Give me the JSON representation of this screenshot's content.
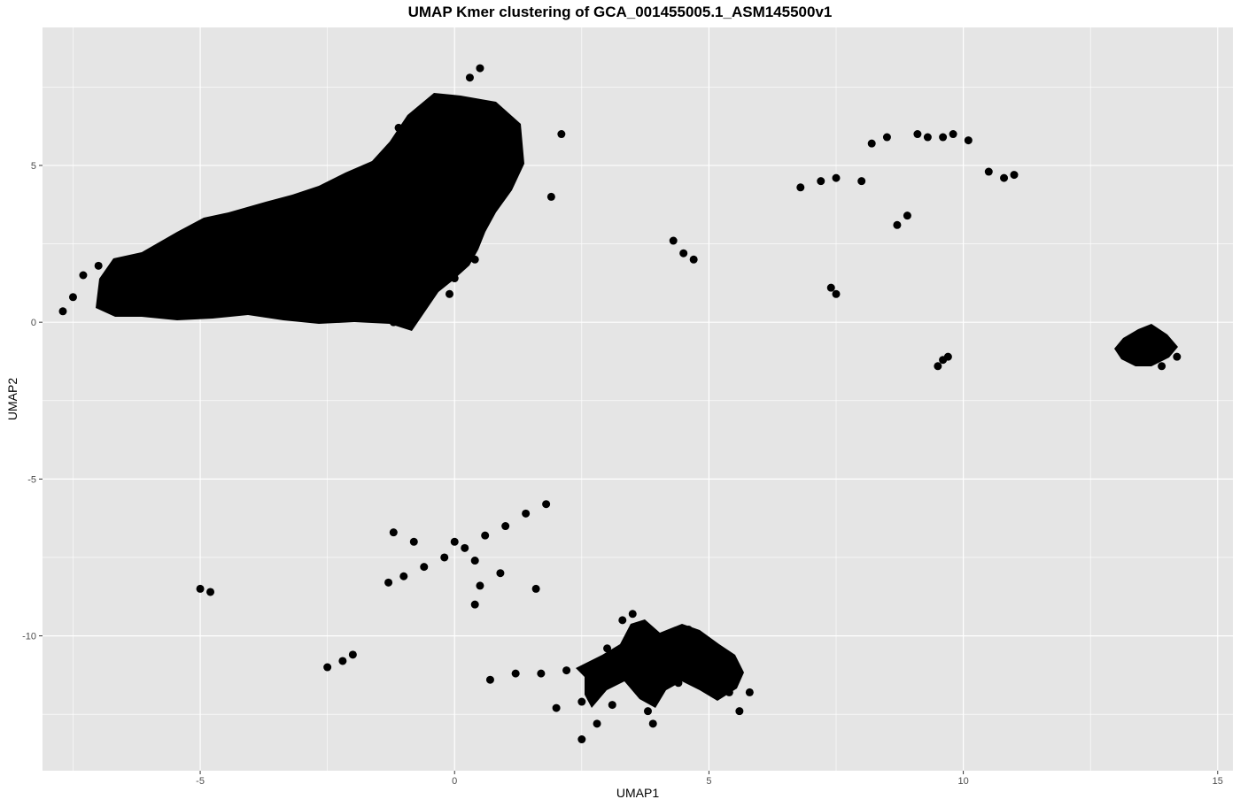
{
  "chart_data": {
    "type": "scatter",
    "title": "UMAP Kmer clustering of GCA_001455005.1_ASM145500v1",
    "xlabel": "UMAP1",
    "ylabel": "UMAP2",
    "xlim": [
      -8.1,
      15.3
    ],
    "ylim": [
      -14.3,
      9.4
    ],
    "x_ticks": [
      -5,
      0,
      5,
      10,
      15
    ],
    "x_tick_labels": [
      "-5",
      "0",
      "5",
      "10",
      "15"
    ],
    "y_ticks": [
      -10,
      -5,
      0,
      5
    ],
    "y_tick_labels": [
      "-10",
      "-5",
      "0",
      "5"
    ],
    "grid": true,
    "legend": "none",
    "point_color": "#000000",
    "panel_background": "#e5e5e5",
    "grid_color": "#ffffff",
    "series": [
      {
        "points": [
          [
            -7.7,
            0.35
          ],
          [
            -7.5,
            0.8
          ],
          [
            -7.3,
            1.5
          ],
          [
            -7.0,
            1.8
          ],
          [
            -6.8,
            0.6
          ],
          [
            -6.5,
            1.2
          ],
          [
            -6.2,
            2.0
          ],
          [
            -6.0,
            0.4
          ],
          [
            -5.8,
            1.6
          ],
          [
            -5.6,
            2.4
          ],
          [
            -5.4,
            0.9
          ],
          [
            -5.2,
            2.8
          ],
          [
            -5.0,
            1.5
          ],
          [
            -4.8,
            2.2
          ],
          [
            -4.6,
            0.6
          ],
          [
            -4.4,
            3.0
          ],
          [
            -4.2,
            1.8
          ],
          [
            -4.0,
            2.6
          ],
          [
            -3.8,
            0.8
          ],
          [
            -3.6,
            3.2
          ],
          [
            -3.4,
            2.0
          ],
          [
            -3.2,
            3.6
          ],
          [
            -3.0,
            1.2
          ],
          [
            -2.8,
            4.0
          ],
          [
            -2.6,
            2.6
          ],
          [
            -2.4,
            0.2
          ],
          [
            -2.2,
            4.4
          ],
          [
            -2.0,
            3.0
          ],
          [
            -1.8,
            1.6
          ],
          [
            -1.6,
            4.8
          ],
          [
            -1.4,
            3.4
          ],
          [
            -1.2,
            0.0
          ],
          [
            -1.0,
            5.4
          ],
          [
            -0.8,
            6.6
          ],
          [
            -0.6,
            2.2
          ],
          [
            -0.4,
            7.0
          ],
          [
            -0.2,
            4.6
          ],
          [
            0.0,
            1.4
          ],
          [
            0.2,
            6.0
          ],
          [
            0.4,
            3.6
          ],
          [
            0.6,
            5.2
          ],
          [
            0.8,
            4.2
          ],
          [
            0.4,
            2.0
          ],
          [
            -0.3,
            5.8
          ],
          [
            -1.1,
            6.2
          ],
          [
            -0.1,
            0.9
          ],
          [
            0.3,
            7.8
          ],
          [
            0.5,
            8.1
          ],
          [
            2.1,
            6.0
          ],
          [
            1.9,
            4.0
          ],
          [
            4.3,
            2.6
          ],
          [
            4.5,
            2.2
          ],
          [
            4.7,
            2.0
          ],
          [
            6.8,
            4.3
          ],
          [
            7.2,
            4.5
          ],
          [
            7.5,
            4.6
          ],
          [
            8.0,
            4.5
          ],
          [
            8.2,
            5.7
          ],
          [
            8.5,
            5.9
          ],
          [
            8.7,
            3.1
          ],
          [
            8.9,
            3.4
          ],
          [
            9.1,
            6.0
          ],
          [
            9.3,
            5.9
          ],
          [
            9.6,
            5.9
          ],
          [
            9.8,
            6.0
          ],
          [
            10.1,
            5.8
          ],
          [
            10.5,
            4.8
          ],
          [
            10.8,
            4.6
          ],
          [
            11.0,
            4.7
          ],
          [
            7.4,
            1.1
          ],
          [
            7.5,
            0.9
          ],
          [
            9.5,
            -1.4
          ],
          [
            9.6,
            -1.2
          ],
          [
            9.7,
            -1.1
          ],
          [
            13.3,
            -0.9
          ],
          [
            13.5,
            -1.2
          ],
          [
            13.6,
            -0.6
          ],
          [
            13.8,
            -1.0
          ],
          [
            13.9,
            -1.4
          ],
          [
            14.0,
            -0.8
          ],
          [
            14.2,
            -1.1
          ],
          [
            13.7,
            -0.4
          ],
          [
            -1.3,
            -8.3
          ],
          [
            -1.0,
            -8.1
          ],
          [
            -0.6,
            -7.8
          ],
          [
            -0.2,
            -7.5
          ],
          [
            0.2,
            -7.2
          ],
          [
            0.6,
            -6.8
          ],
          [
            1.0,
            -6.5
          ],
          [
            1.4,
            -6.1
          ],
          [
            1.8,
            -5.8
          ],
          [
            -1.2,
            -6.7
          ],
          [
            -0.8,
            -7.0
          ],
          [
            0.0,
            -7.0
          ],
          [
            0.4,
            -7.6
          ],
          [
            0.9,
            -8.0
          ],
          [
            1.6,
            -8.5
          ],
          [
            0.5,
            -8.4
          ],
          [
            0.4,
            -9.0
          ],
          [
            -5.0,
            -8.5
          ],
          [
            -4.8,
            -8.6
          ],
          [
            -2.5,
            -11.0
          ],
          [
            -2.2,
            -10.8
          ],
          [
            -2.0,
            -10.6
          ],
          [
            0.7,
            -11.4
          ],
          [
            1.2,
            -11.2
          ],
          [
            1.7,
            -11.2
          ],
          [
            2.2,
            -11.1
          ],
          [
            2.6,
            -11.0
          ],
          [
            2.0,
            -12.3
          ],
          [
            2.5,
            -12.1
          ],
          [
            2.5,
            -13.3
          ],
          [
            2.8,
            -12.8
          ],
          [
            3.1,
            -12.2
          ],
          [
            3.0,
            -10.4
          ],
          [
            3.3,
            -9.5
          ],
          [
            3.5,
            -9.3
          ],
          [
            3.4,
            -10.8
          ],
          [
            3.6,
            -11.6
          ],
          [
            3.8,
            -12.4
          ],
          [
            3.9,
            -12.8
          ],
          [
            4.0,
            -11.0
          ],
          [
            4.2,
            -10.6
          ],
          [
            4.5,
            -10.1
          ],
          [
            4.6,
            -9.8
          ],
          [
            4.8,
            -11.3
          ],
          [
            5.0,
            -11.0
          ],
          [
            5.2,
            -10.9
          ],
          [
            5.4,
            -11.8
          ],
          [
            5.6,
            -12.4
          ],
          [
            5.8,
            -11.8
          ],
          [
            4.4,
            -11.5
          ]
        ]
      }
    ]
  }
}
